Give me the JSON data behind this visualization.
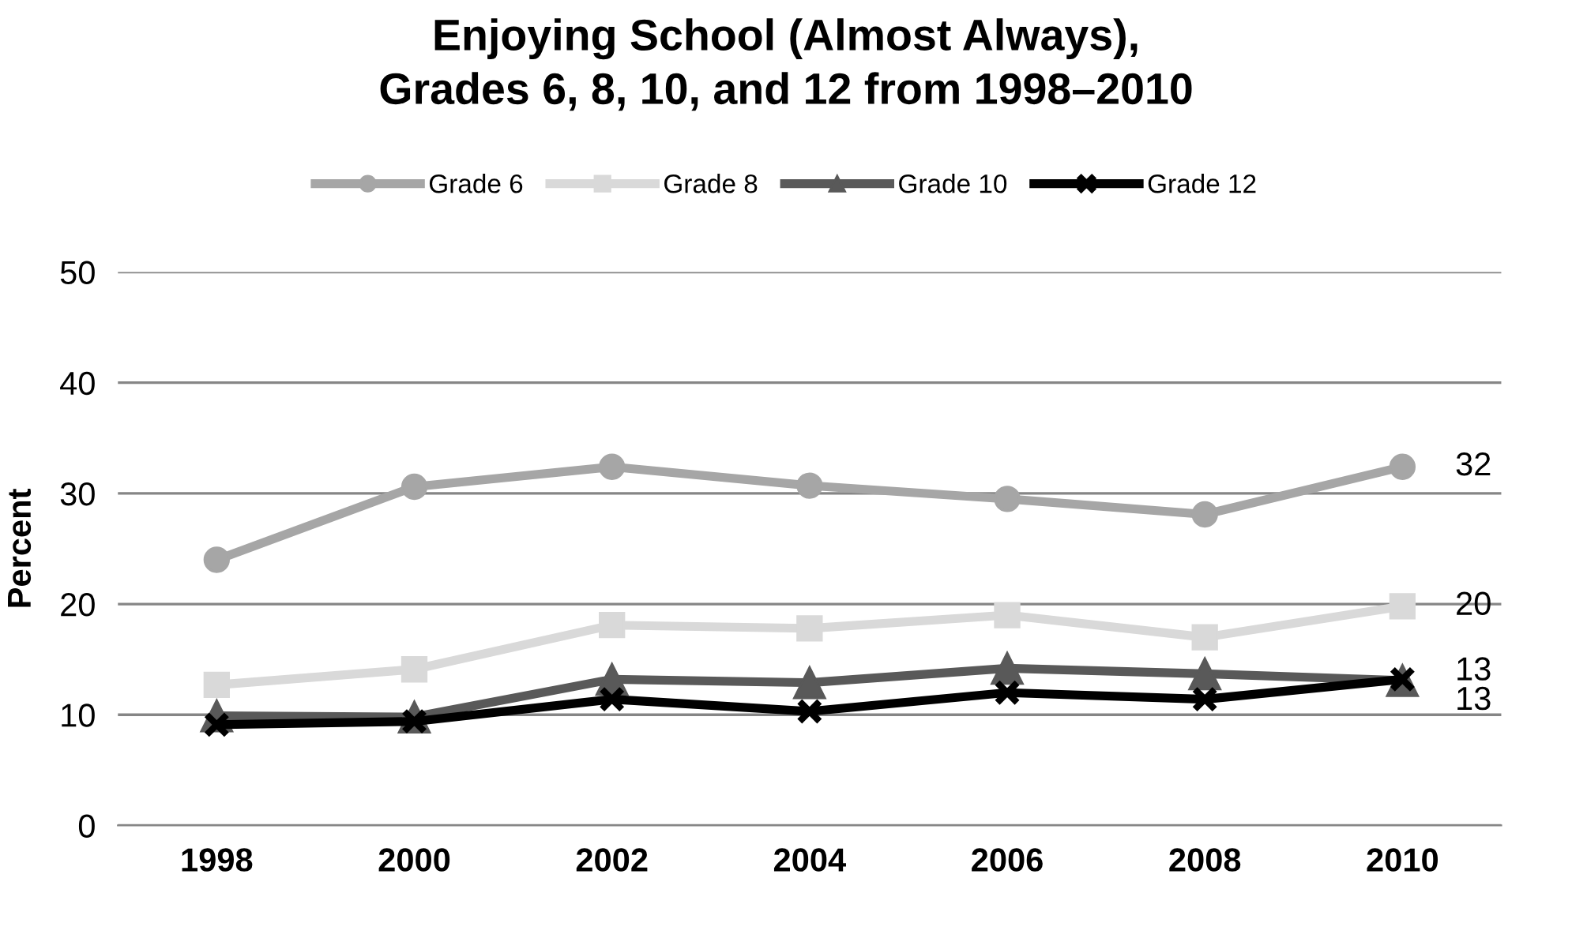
{
  "chart_data": {
    "type": "line",
    "title": "Enjoying School (Almost Always),\nGrades 6, 8, 10, and 12 from 1998–2010",
    "ylabel": "Percent",
    "categories": [
      "1998",
      "2000",
      "2002",
      "2004",
      "2006",
      "2008",
      "2010"
    ],
    "series": [
      {
        "name": "Grade 6",
        "color": "#a6a6a6",
        "marker": "circle",
        "values": [
          24.0,
          30.6,
          32.4,
          30.7,
          29.5,
          28.1,
          32.4
        ],
        "value_labels": [
          null,
          null,
          null,
          null,
          null,
          null,
          "32"
        ]
      },
      {
        "name": "Grade 8",
        "color": "#d9d9d9",
        "marker": "square",
        "values": [
          12.7,
          14.1,
          18.1,
          17.8,
          19.0,
          17.0,
          19.8
        ],
        "value_labels": [
          null,
          null,
          null,
          null,
          null,
          null,
          "20"
        ]
      },
      {
        "name": "Grade 10",
        "color": "#595959",
        "marker": "triangle",
        "values": [
          9.9,
          9.8,
          13.2,
          12.9,
          14.2,
          13.7,
          13.1
        ],
        "value_labels": [
          null,
          null,
          null,
          null,
          null,
          null,
          "13"
        ]
      },
      {
        "name": "Grade 12",
        "color": "#000000",
        "marker": "cross",
        "values": [
          9.1,
          9.4,
          11.4,
          10.3,
          12.0,
          11.4,
          13.2
        ],
        "value_labels": [
          null,
          null,
          null,
          null,
          null,
          null,
          "13"
        ]
      }
    ],
    "ylim": [
      0,
      50
    ],
    "yticks": [
      0,
      10,
      20,
      30,
      40,
      50
    ],
    "grid": "y",
    "legend": "top"
  }
}
